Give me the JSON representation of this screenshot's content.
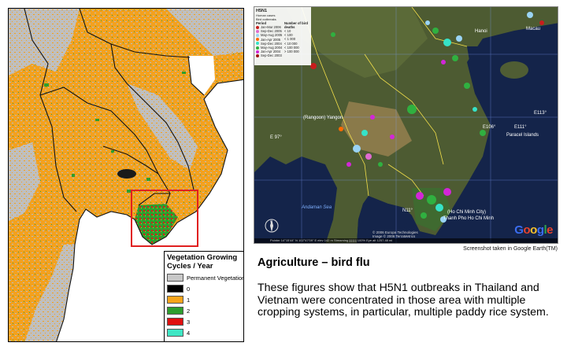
{
  "left_map": {
    "legend": {
      "title": "Vegetation Growing Cycles / Year",
      "items": [
        {
          "label": "Permanent Vegetation",
          "color": "#c8c8c8"
        },
        {
          "label": "0",
          "color": "#000000"
        },
        {
          "label": "1",
          "color": "#f7a51c"
        },
        {
          "label": "2",
          "color": "#2e9e2e"
        },
        {
          "label": "3",
          "color": "#e01010"
        },
        {
          "label": "4",
          "color": "#3ee6c4"
        }
      ]
    },
    "highlight_color": "#e02020"
  },
  "right_map": {
    "legend": {
      "title": "H5N1",
      "human_cases": "Human cases",
      "bird_outbreaks": "Bird outbreaks",
      "period_label": "Period",
      "number_label": "Number of bird deaths",
      "periods": [
        {
          "label": "Jan-Mar 2006",
          "color": "#c81d1d"
        },
        {
          "label": "Sep-Dec 2005",
          "color": "#e06bd0"
        },
        {
          "label": "May-Aug 2005",
          "color": "#9ad4f5"
        },
        {
          "label": "Jan-Apr 2005",
          "color": "#ff6a00"
        },
        {
          "label": "Sep-Dec 2004",
          "color": "#36e3c8"
        },
        {
          "label": "May-Aug 2004",
          "color": "#30b040"
        },
        {
          "label": "Jan-Apr 2004",
          "color": "#d226d8"
        },
        {
          "label": "Sep-Dec 2003",
          "color": "#a01010"
        }
      ],
      "sizes": [
        "< 10",
        "< 100",
        "< 1 000",
        "< 10 000",
        "< 100 000",
        "> 100 000"
      ]
    },
    "labels": {
      "sea_andaman": "Andaman Sea",
      "paracel": "Paracel Islands",
      "rangoon": "(Rangoon) Yangon",
      "hcm": "(Ho Chi Minh City)",
      "hcm2": "Thanh Pho Ho Chi Minh",
      "macau": "Macau",
      "e106": "E106°",
      "e111": "E111°",
      "e113": "E113°",
      "e97": "E 97°",
      "n11": "N11°",
      "hanoi": "Hanoi"
    },
    "copyright": [
      "© 2006 Europa Technologies",
      "Image © 2006 TerraMetrics"
    ],
    "status": "Pointer 14°15'44\" N 102°47'09\" E   elev 142 m   Streaming ||||||||| 100%   Eye alt 1257.48 mi",
    "google_letters": [
      "G",
      "o",
      "o",
      "g",
      "l",
      "e"
    ]
  },
  "caption": "Screenshot taken in Google Earth(TM)",
  "heading": "Agriculture – bird flu",
  "body": "These figures show that H5N1 outbreaks in Thailand and Vietnam were concentrated in those area with multiple cropping systems, in particular, multiple paddy rice system."
}
